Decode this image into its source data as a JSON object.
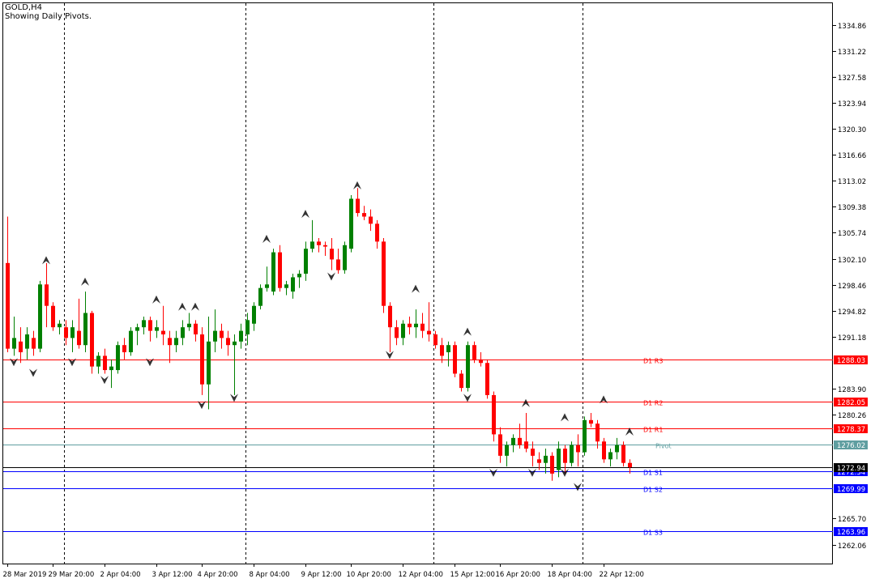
{
  "header": {
    "symbol": "GOLD,H4",
    "status": "Showing Daily Pivots."
  },
  "colors": {
    "bull": "#008000",
    "bear": "#ff0000",
    "resistance": "#ff0000",
    "support": "#0000ff",
    "pivot": "#5f9ea0",
    "current": "#000000",
    "fractal": "#000000"
  },
  "chart_data": {
    "type": "candlestick",
    "title": "GOLD,H4",
    "subtitle": "Showing Daily Pivots.",
    "ylim": [
      1259.4,
      1338.0
    ],
    "y_ticks": [
      "1334.86",
      "1331.22",
      "1327.58",
      "1323.94",
      "1320.30",
      "1316.66",
      "1313.02",
      "1309.38",
      "1305.74",
      "1302.10",
      "1298.46",
      "1294.82",
      "1291.18",
      "1283.90",
      "1280.26",
      "1265.70",
      "1262.06"
    ],
    "x_ticks": [
      {
        "i": 0,
        "label": "28 Mar 2019"
      },
      {
        "i": 7,
        "label": "29 Mar 20:00"
      },
      {
        "i": 15,
        "label": "2 Apr 04:00"
      },
      {
        "i": 23,
        "label": "3 Apr 12:00"
      },
      {
        "i": 30,
        "label": "4 Apr 20:00"
      },
      {
        "i": 38,
        "label": "8 Apr 04:00"
      },
      {
        "i": 46,
        "label": "9 Apr 12:00"
      },
      {
        "i": 53,
        "label": "10 Apr 20:00"
      },
      {
        "i": 61,
        "label": "12 Apr 04:00"
      },
      {
        "i": 69,
        "label": "15 Apr 12:00"
      },
      {
        "i": 76,
        "label": "16 Apr 20:00"
      },
      {
        "i": 84,
        "label": "18 Apr 04:00"
      },
      {
        "i": 92,
        "label": "22 Apr 12:00"
      }
    ],
    "session_separators": [
      8.7,
      36.7,
      65.7,
      88.7
    ],
    "levels": [
      {
        "name": "D1 R3",
        "value": 1288.03,
        "label": "1288.03",
        "kind": "resistance"
      },
      {
        "name": "D1 R2",
        "value": 1282.05,
        "label": "1282.05",
        "kind": "resistance"
      },
      {
        "name": "D1 R1",
        "value": 1278.37,
        "label": "1278.37",
        "kind": "resistance"
      },
      {
        "name": "Pivot",
        "value": 1276.02,
        "label": "1276.02",
        "kind": "pivot"
      },
      {
        "name": "D1 S1",
        "value": 1272.34,
        "label": "1272.34",
        "kind": "support"
      },
      {
        "name": "D1 S2",
        "value": 1269.99,
        "label": "1269.99",
        "kind": "support"
      },
      {
        "name": "D1 S3",
        "value": 1263.96,
        "label": "1263.96",
        "kind": "support"
      }
    ],
    "current_price": {
      "value": 1272.94,
      "label": "1272.94"
    },
    "candles": [
      [
        1301.5,
        1308.0,
        1289.0,
        1289.5
      ],
      [
        1289.5,
        1294.0,
        1288.5,
        1291.0
      ],
      [
        1290.5,
        1292.5,
        1287.5,
        1289.0
      ],
      [
        1289.5,
        1292.5,
        1288.0,
        1291.5
      ],
      [
        1291.0,
        1292.0,
        1288.5,
        1289.5
      ],
      [
        1289.5,
        1299.0,
        1289.0,
        1298.5
      ],
      [
        1298.5,
        1301.5,
        1292.5,
        1295.5
      ],
      [
        1295.5,
        1296.0,
        1292.0,
        1292.5
      ],
      [
        1292.5,
        1293.5,
        1291.5,
        1293.0
      ],
      [
        1292.5,
        1293.5,
        1290.0,
        1291.0
      ],
      [
        1291.0,
        1293.5,
        1289.0,
        1292.5
      ],
      [
        1292.0,
        1296.5,
        1289.5,
        1290.0
      ],
      [
        1290.0,
        1297.5,
        1289.0,
        1294.5
      ],
      [
        1294.5,
        1294.8,
        1286.0,
        1287.0
      ],
      [
        1287.0,
        1289.0,
        1286.0,
        1288.5
      ],
      [
        1288.5,
        1289.5,
        1286.0,
        1286.5
      ],
      [
        1286.5,
        1288.0,
        1284.0,
        1287.0
      ],
      [
        1286.5,
        1290.5,
        1286.0,
        1290.0
      ],
      [
        1290.0,
        1291.0,
        1288.0,
        1289.0
      ],
      [
        1289.0,
        1292.5,
        1288.5,
        1292.0
      ],
      [
        1292.0,
        1293.0,
        1290.0,
        1292.5
      ],
      [
        1292.5,
        1294.0,
        1291.5,
        1293.5
      ],
      [
        1293.5,
        1294.0,
        1290.5,
        1292.0
      ],
      [
        1292.0,
        1293.5,
        1291.0,
        1292.5
      ],
      [
        1292.0,
        1295.5,
        1290.0,
        1291.5
      ],
      [
        1291.0,
        1292.0,
        1287.5,
        1290.0
      ],
      [
        1290.0,
        1292.0,
        1289.0,
        1291.0
      ],
      [
        1291.0,
        1293.5,
        1290.0,
        1292.5
      ],
      [
        1292.5,
        1294.5,
        1292.0,
        1293.0
      ],
      [
        1293.0,
        1293.5,
        1290.5,
        1291.5
      ],
      [
        1291.5,
        1292.5,
        1283.0,
        1284.5
      ],
      [
        1284.5,
        1294.0,
        1281.0,
        1290.5
      ],
      [
        1290.5,
        1295.0,
        1289.0,
        1292.0
      ],
      [
        1292.0,
        1293.0,
        1289.5,
        1291.0
      ],
      [
        1291.0,
        1292.0,
        1288.5,
        1290.0
      ],
      [
        1290.0,
        1291.5,
        1283.0,
        1290.5
      ],
      [
        1290.5,
        1293.0,
        1289.5,
        1292.0
      ],
      [
        1291.5,
        1294.5,
        1290.0,
        1293.5
      ],
      [
        1293.0,
        1296.0,
        1292.0,
        1295.5
      ],
      [
        1295.5,
        1298.5,
        1295.0,
        1298.0
      ],
      [
        1298.0,
        1301.0,
        1297.5,
        1298.5
      ],
      [
        1297.5,
        1303.5,
        1297.0,
        1303.0
      ],
      [
        1303.0,
        1304.0,
        1297.5,
        1298.0
      ],
      [
        1298.0,
        1299.0,
        1297.0,
        1298.5
      ],
      [
        1297.5,
        1300.0,
        1296.5,
        1299.5
      ],
      [
        1299.5,
        1300.5,
        1298.0,
        1300.0
      ],
      [
        1300.0,
        1304.5,
        1299.0,
        1303.5
      ],
      [
        1303.5,
        1307.5,
        1303.0,
        1304.5
      ],
      [
        1304.5,
        1305.0,
        1303.0,
        1304.0
      ],
      [
        1304.0,
        1304.5,
        1302.5,
        1303.8
      ],
      [
        1303.5,
        1305.0,
        1300.5,
        1302.0
      ],
      [
        1302.0,
        1303.5,
        1300.0,
        1300.5
      ],
      [
        1300.5,
        1304.5,
        1300.0,
        1304.0
      ],
      [
        1303.5,
        1311.0,
        1303.0,
        1310.5
      ],
      [
        1310.5,
        1312.0,
        1308.0,
        1308.5
      ],
      [
        1308.5,
        1309.5,
        1307.5,
        1308.0
      ],
      [
        1308.0,
        1309.0,
        1306.0,
        1307.0
      ],
      [
        1307.0,
        1307.5,
        1303.5,
        1304.5
      ],
      [
        1304.5,
        1305.0,
        1294.5,
        1295.5
      ],
      [
        1295.5,
        1296.0,
        1289.0,
        1292.5
      ],
      [
        1292.5,
        1293.5,
        1290.0,
        1291.0
      ],
      [
        1291.0,
        1293.5,
        1290.0,
        1293.0
      ],
      [
        1293.0,
        1294.0,
        1291.5,
        1292.5
      ],
      [
        1292.5,
        1295.0,
        1291.0,
        1293.0
      ],
      [
        1293.0,
        1294.5,
        1291.0,
        1292.0
      ],
      [
        1292.0,
        1296.0,
        1290.5,
        1291.5
      ],
      [
        1291.5,
        1292.0,
        1289.5,
        1290.0
      ],
      [
        1290.0,
        1291.0,
        1287.5,
        1288.5
      ],
      [
        1289.0,
        1290.5,
        1287.0,
        1290.0
      ],
      [
        1290.0,
        1290.5,
        1285.5,
        1286.0
      ],
      [
        1286.0,
        1286.5,
        1283.5,
        1284.0
      ],
      [
        1284.0,
        1290.5,
        1283.5,
        1290.0
      ],
      [
        1290.0,
        1290.5,
        1287.5,
        1288.0
      ],
      [
        1288.0,
        1289.0,
        1287.0,
        1287.5
      ],
      [
        1287.5,
        1288.0,
        1282.5,
        1283.0
      ],
      [
        1283.0,
        1283.5,
        1276.5,
        1277.5
      ],
      [
        1277.5,
        1278.5,
        1273.5,
        1274.5
      ],
      [
        1274.5,
        1276.5,
        1273.0,
        1276.0
      ],
      [
        1276.0,
        1277.5,
        1275.0,
        1277.0
      ],
      [
        1277.0,
        1279.0,
        1275.5,
        1276.0
      ],
      [
        1276.5,
        1280.5,
        1275.0,
        1275.5
      ],
      [
        1275.5,
        1276.5,
        1273.0,
        1274.5
      ],
      [
        1274.0,
        1275.0,
        1272.5,
        1273.5
      ],
      [
        1273.5,
        1275.5,
        1272.0,
        1274.5
      ],
      [
        1274.5,
        1275.0,
        1271.0,
        1272.0
      ],
      [
        1272.5,
        1276.5,
        1271.5,
        1275.5
      ],
      [
        1275.5,
        1276.0,
        1272.0,
        1273.5
      ],
      [
        1273.5,
        1276.5,
        1273.0,
        1276.0
      ],
      [
        1276.0,
        1277.5,
        1273.0,
        1275.0
      ],
      [
        1275.0,
        1280.0,
        1274.5,
        1279.5
      ],
      [
        1279.5,
        1280.5,
        1278.5,
        1279.0
      ],
      [
        1279.0,
        1279.5,
        1275.5,
        1276.5
      ],
      [
        1276.5,
        1277.0,
        1273.5,
        1274.0
      ],
      [
        1274.0,
        1275.5,
        1273.0,
        1275.0
      ],
      [
        1275.0,
        1277.0,
        1274.0,
        1276.0
      ],
      [
        1276.0,
        1276.5,
        1273.0,
        1273.5
      ],
      [
        1273.5,
        1274.0,
        1272.0,
        1272.9
      ]
    ],
    "fractals_up": [
      [
        6,
        1302.0
      ],
      [
        12,
        1299.0
      ],
      [
        23,
        1296.5
      ],
      [
        27,
        1295.5
      ],
      [
        29,
        1295.5
      ],
      [
        40,
        1305.0
      ],
      [
        46,
        1308.5
      ],
      [
        54,
        1312.5
      ],
      [
        63,
        1298.0
      ],
      [
        71,
        1292.0
      ],
      [
        80,
        1282.0
      ],
      [
        86,
        1280.0
      ],
      [
        92,
        1282.5
      ],
      [
        96,
        1278.0
      ]
    ],
    "fractals_down": [
      [
        1,
        1287.5
      ],
      [
        4,
        1286.0
      ],
      [
        10,
        1287.5
      ],
      [
        15,
        1285.0
      ],
      [
        22,
        1287.5
      ],
      [
        30,
        1281.5
      ],
      [
        35,
        1282.5
      ],
      [
        50,
        1299.5
      ],
      [
        59,
        1288.5
      ],
      [
        71,
        1282.5
      ],
      [
        75,
        1272.0
      ],
      [
        81,
        1272.0
      ],
      [
        88,
        1270.0
      ],
      [
        86,
        1272.0
      ]
    ]
  }
}
